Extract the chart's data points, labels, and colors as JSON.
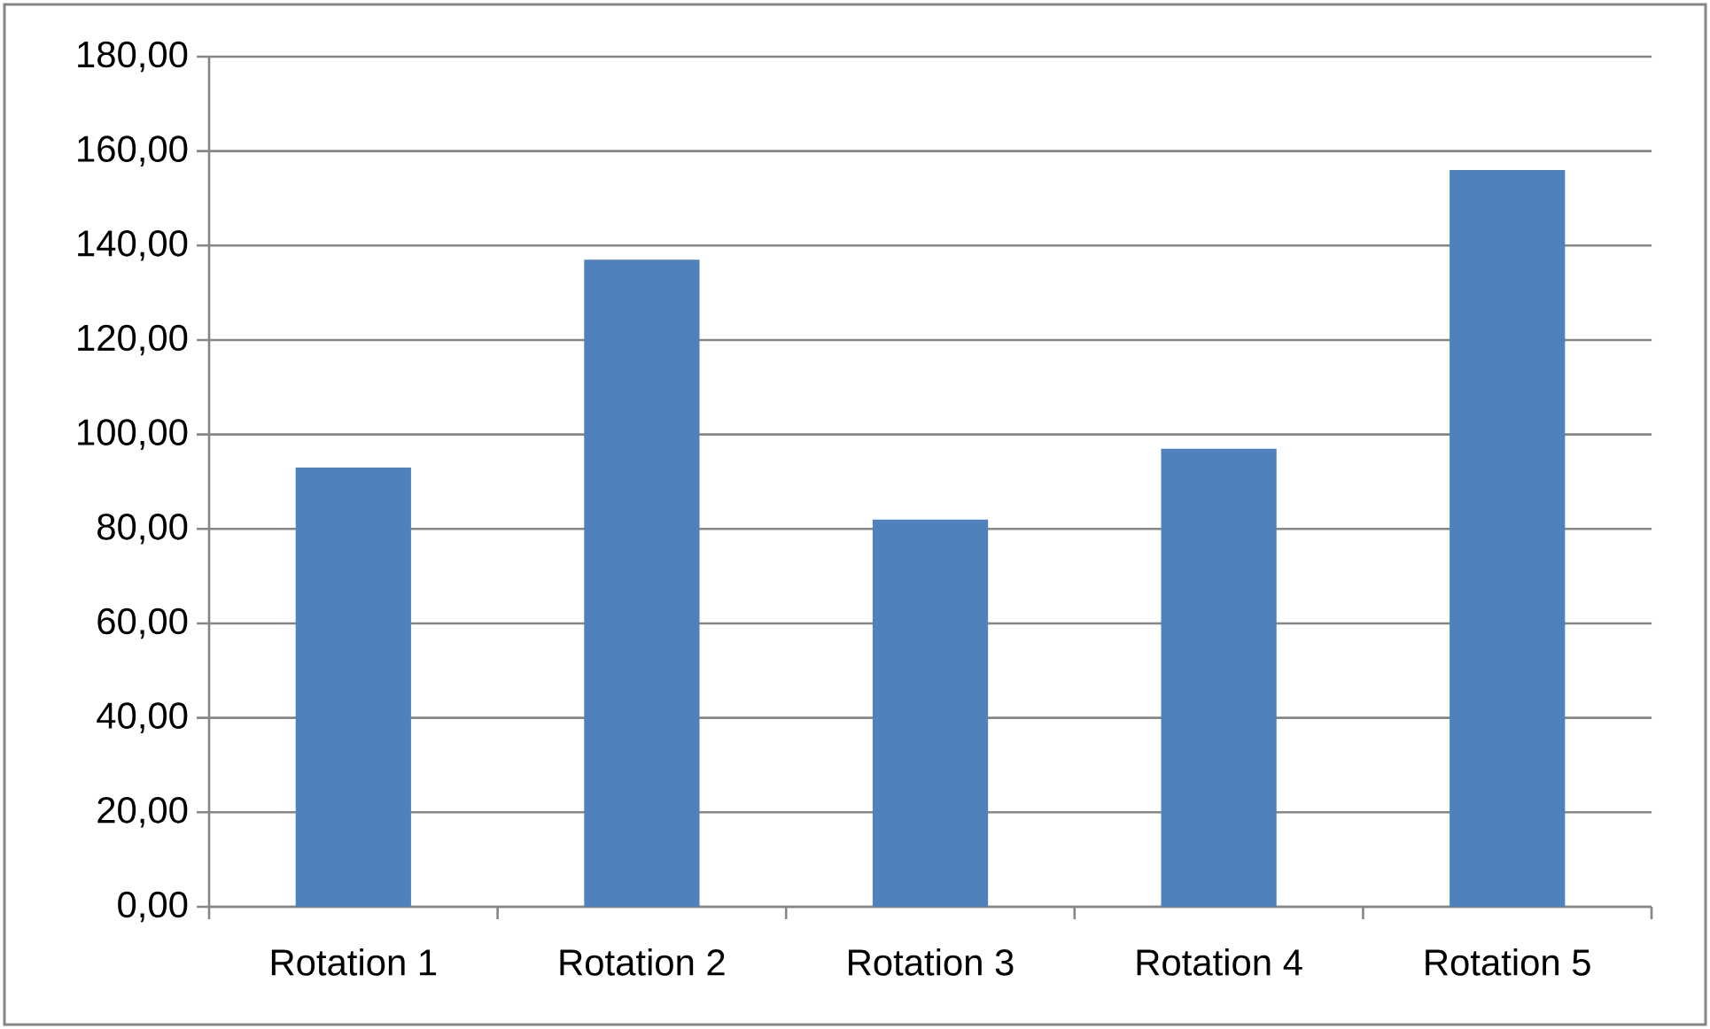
{
  "chart_data": {
    "type": "bar",
    "categories": [
      "Rotation 1",
      "Rotation 2",
      "Rotation 3",
      "Rotation 4",
      "Rotation 5"
    ],
    "values": [
      93,
      137,
      82,
      97,
      156
    ],
    "color": "#4f81bd",
    "ylim": [
      0,
      180
    ],
    "yticks": [
      {
        "value": 0,
        "label": "0,00"
      },
      {
        "value": 20,
        "label": "20,00"
      },
      {
        "value": 40,
        "label": "40,00"
      },
      {
        "value": 60,
        "label": "60,00"
      },
      {
        "value": 80,
        "label": "80,00"
      },
      {
        "value": 100,
        "label": "100,00"
      },
      {
        "value": 120,
        "label": "120,00"
      },
      {
        "value": 140,
        "label": "140,00"
      },
      {
        "value": 160,
        "label": "160,00"
      },
      {
        "value": 180,
        "label": "180,00"
      }
    ],
    "grid": "y"
  }
}
